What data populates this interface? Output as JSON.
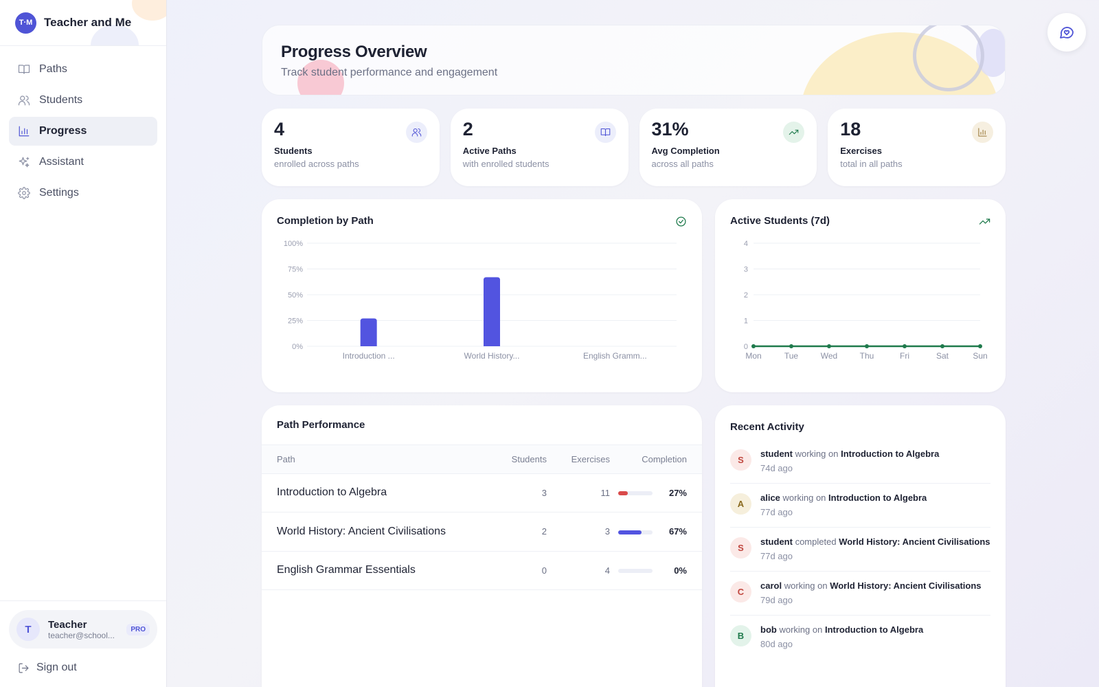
{
  "app": {
    "initials": "T·M",
    "name": "Teacher and Me"
  },
  "nav": [
    {
      "label": "Paths",
      "icon": "book-icon"
    },
    {
      "label": "Students",
      "icon": "users-icon"
    },
    {
      "label": "Progress",
      "icon": "bar-chart-icon",
      "active": true
    },
    {
      "label": "Assistant",
      "icon": "sparkle-icon"
    },
    {
      "label": "Settings",
      "icon": "gear-icon"
    }
  ],
  "user": {
    "initial": "T",
    "name": "Teacher",
    "email": "teacher@school...",
    "badge": "PRO"
  },
  "signout_label": "Sign out",
  "header": {
    "title": "Progress Overview",
    "subtitle": "Track student performance and engagement"
  },
  "stats": [
    {
      "value": "4",
      "label": "Students",
      "sub": "enrolled across paths",
      "icon": "users-icon",
      "color": "#4f54d6",
      "bg": "#eceefb"
    },
    {
      "value": "2",
      "label": "Active Paths",
      "sub": "with enrolled students",
      "icon": "book-icon",
      "color": "#4f54d6",
      "bg": "#eceefb"
    },
    {
      "value": "31%",
      "label": "Avg Completion",
      "sub": "across all paths",
      "icon": "trending-up-icon",
      "color": "#1f7a4c",
      "bg": "#e4f3ea"
    },
    {
      "value": "18",
      "label": "Exercises",
      "sub": "total in all paths",
      "icon": "bar-chart-icon",
      "color": "#9a7a3a",
      "bg": "#f6efe0"
    }
  ],
  "bar_title": "Completion by Path",
  "line_title": "Active Students (7d)",
  "chart_data": [
    {
      "type": "bar",
      "title": "Completion by Path",
      "categories": [
        "Introduction ...",
        "World History...",
        "English Gramm..."
      ],
      "values": [
        27,
        67,
        0
      ],
      "ylim": [
        0,
        100
      ],
      "yticks": [
        "0%",
        "25%",
        "50%",
        "75%",
        "100%"
      ],
      "ytick_values": [
        0,
        25,
        50,
        75,
        100
      ],
      "color": "#5254e0",
      "grid": true
    },
    {
      "type": "line",
      "title": "Active Students (7d)",
      "x": [
        "Mon",
        "Tue",
        "Wed",
        "Thu",
        "Fri",
        "Sat",
        "Sun"
      ],
      "values": [
        0,
        0,
        0,
        0,
        0,
        0,
        0
      ],
      "ylim": [
        0,
        4
      ],
      "yticks": [
        "0",
        "1",
        "2",
        "3",
        "4"
      ],
      "ytick_values": [
        0,
        1,
        2,
        3,
        4
      ],
      "color": "#1f7a4c",
      "grid": true
    }
  ],
  "performance": {
    "title": "Path Performance",
    "columns": [
      "Path",
      "Students",
      "Exercises",
      "Completion"
    ],
    "rows": [
      {
        "path": "Introduction to Algebra",
        "students": "3",
        "exercises": "11",
        "completion": "27%",
        "completion_value": 27,
        "color": "#d94a4a"
      },
      {
        "path": "World History: Ancient Civilisations",
        "students": "2",
        "exercises": "3",
        "completion": "67%",
        "completion_value": 67,
        "color": "#5254e0"
      },
      {
        "path": "English Grammar Essentials",
        "students": "0",
        "exercises": "4",
        "completion": "0%",
        "completion_value": 0,
        "color": "#5254e0"
      }
    ]
  },
  "activity": {
    "title": "Recent Activity",
    "items": [
      {
        "initial": "S",
        "user": "student",
        "verb": "working on",
        "target": "Introduction to Algebra",
        "time": "74d ago",
        "color": "#c0473f",
        "bg": "#fbe9e7"
      },
      {
        "initial": "A",
        "user": "alice",
        "verb": "working on",
        "target": "Introduction to Algebra",
        "time": "77d ago",
        "color": "#8a6a1f",
        "bg": "#f6efdc"
      },
      {
        "initial": "S",
        "user": "student",
        "verb": "completed",
        "target": "World History: Ancient Civilisations",
        "time": "77d ago",
        "color": "#c0473f",
        "bg": "#fbe9e7"
      },
      {
        "initial": "C",
        "user": "carol",
        "verb": "working on",
        "target": "World History: Ancient Civilisations",
        "time": "79d ago",
        "color": "#c0473f",
        "bg": "#fbe9e7"
      },
      {
        "initial": "B",
        "user": "bob",
        "verb": "working on",
        "target": "Introduction to Algebra",
        "time": "80d ago",
        "color": "#1f7a4c",
        "bg": "#e3f3ea"
      }
    ]
  }
}
